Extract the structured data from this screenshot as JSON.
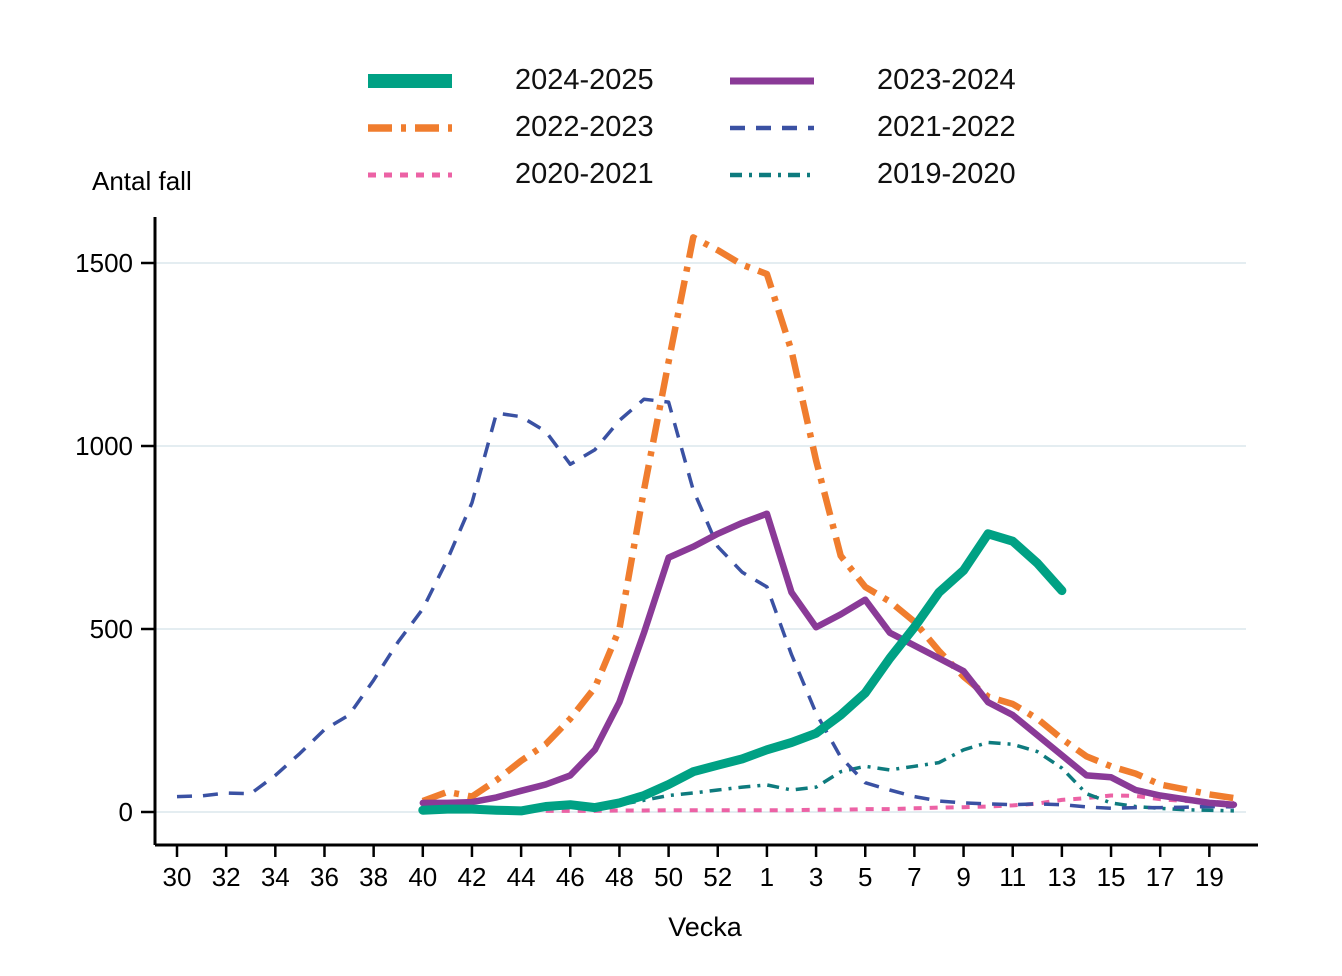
{
  "chart_data": {
    "type": "line",
    "y_axis_title": "Antal fall",
    "x_axis_title": "Vecka",
    "y_ticks": [
      "0",
      "500",
      "1000",
      "1500"
    ],
    "y_tick_values": [
      0,
      500,
      1000,
      1500
    ],
    "ylim": [
      0,
      1630
    ],
    "grid": "horizontal light gridlines at each y tick",
    "legend_position": "top center, two columns",
    "x_tick_labels": [
      "30",
      "32",
      "34",
      "36",
      "38",
      "40",
      "42",
      "44",
      "46",
      "48",
      "50",
      "52",
      "1",
      "3",
      "5",
      "7",
      "9",
      "11",
      "13",
      "15",
      "17",
      "19"
    ],
    "weeks": [
      "30",
      "31",
      "32",
      "33",
      "34",
      "35",
      "36",
      "37",
      "38",
      "39",
      "40",
      "41",
      "42",
      "43",
      "44",
      "45",
      "46",
      "47",
      "48",
      "49",
      "50",
      "51",
      "52",
      "53",
      "1",
      "2",
      "3",
      "4",
      "5",
      "6",
      "7",
      "8",
      "9",
      "10",
      "11",
      "12",
      "13",
      "14",
      "15",
      "16",
      "17",
      "18",
      "19",
      "20"
    ],
    "series": [
      {
        "name": "2024-2025",
        "color": "#00a184",
        "style": "solid",
        "thickness": 9,
        "start_index": 10,
        "values": [
          5,
          8,
          8,
          5,
          3,
          15,
          20,
          12,
          25,
          45,
          75,
          110,
          128,
          145,
          170,
          190,
          215,
          265,
          325,
          420,
          505,
          600,
          660,
          760,
          740,
          680,
          605
        ]
      },
      {
        "name": "2023-2024",
        "color": "#8a3a97",
        "style": "solid",
        "thickness": 6.5,
        "start_index": 10,
        "values": [
          25,
          25,
          27,
          40,
          58,
          75,
          100,
          170,
          300,
          490,
          695,
          725,
          760,
          790,
          815,
          600,
          505,
          540,
          580,
          490,
          455,
          420,
          385,
          300,
          265,
          210,
          155,
          100,
          95,
          60,
          45,
          35,
          25,
          20
        ]
      },
      {
        "name": "2022-2023",
        "color": "#f07d2e",
        "style": "dash-dot",
        "thickness": 6.5,
        "start_index": 10,
        "values": [
          30,
          55,
          42,
          87,
          140,
          185,
          255,
          340,
          500,
          880,
          1230,
          1570,
          1535,
          1495,
          1470,
          1260,
          960,
          700,
          615,
          575,
          520,
          440,
          370,
          315,
          295,
          255,
          200,
          152,
          125,
          105,
          75,
          62,
          48,
          38
        ]
      },
      {
        "name": "2021-2022",
        "color": "#3a51a3",
        "style": "dashed",
        "thickness": 3.5,
        "start_index": 0,
        "values": [
          42,
          44,
          52,
          50,
          100,
          160,
          225,
          265,
          360,
          465,
          555,
          690,
          845,
          1090,
          1080,
          1040,
          950,
          990,
          1070,
          1128,
          1120,
          880,
          725,
          655,
          615,
          430,
          270,
          150,
          80,
          60,
          42,
          30,
          25,
          22,
          20,
          22,
          20,
          14,
          10,
          12,
          12,
          13,
          15,
          14
        ]
      },
      {
        "name": "2020-2021",
        "color": "#ec62a5",
        "style": "short-dash",
        "thickness": 4,
        "start_index": 15,
        "values": [
          3,
          3,
          3,
          4,
          4,
          5,
          5,
          5,
          5,
          5,
          5,
          6,
          6,
          8,
          8,
          10,
          12,
          13,
          15,
          18,
          23,
          33,
          38,
          45,
          44,
          35,
          30,
          28,
          25
        ]
      },
      {
        "name": "2019-2020",
        "color": "#0e7b7e",
        "style": "dash-dot-small",
        "thickness": 3.5,
        "start_index": 17,
        "values": [
          12,
          20,
          32,
          45,
          52,
          60,
          68,
          74,
          60,
          68,
          110,
          125,
          115,
          125,
          135,
          170,
          190,
          185,
          165,
          120,
          50,
          25,
          15,
          10,
          6,
          5,
          3
        ]
      }
    ]
  }
}
